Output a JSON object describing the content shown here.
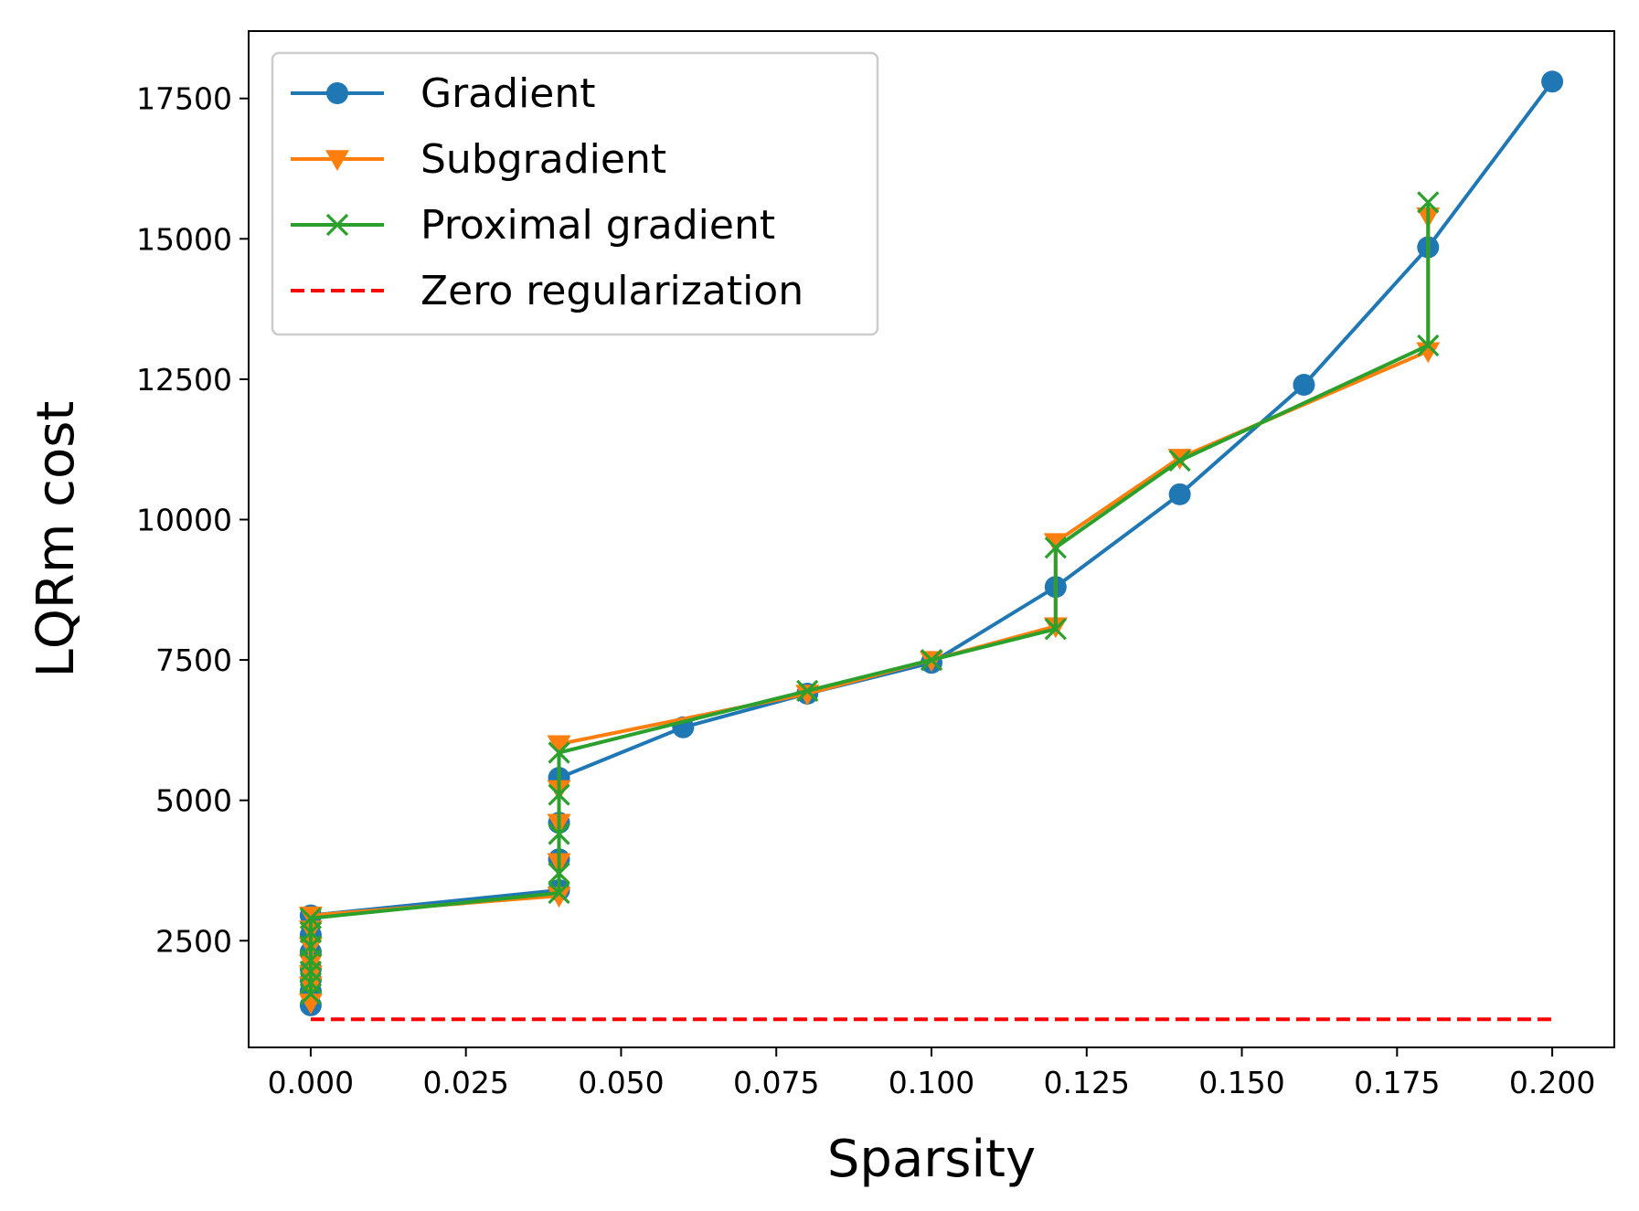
{
  "chart_data": {
    "type": "line",
    "title": "",
    "xlabel": "Sparsity",
    "ylabel": "LQRm cost",
    "xlim": [
      -0.01,
      0.21
    ],
    "ylim": [
      600,
      18700
    ],
    "xticks": [
      0.0,
      0.025,
      0.05,
      0.075,
      0.1,
      0.125,
      0.15,
      0.175,
      0.2
    ],
    "xtick_labels": [
      "0.000",
      "0.025",
      "0.050",
      "0.075",
      "0.100",
      "0.125",
      "0.150",
      "0.175",
      "0.200"
    ],
    "yticks": [
      2500,
      5000,
      7500,
      10000,
      12500,
      15000,
      17500
    ],
    "ytick_labels": [
      "2500",
      "5000",
      "7500",
      "10000",
      "12500",
      "15000",
      "17500"
    ],
    "grid": false,
    "legend_position": "top-left",
    "series": [
      {
        "name": "Gradient",
        "color": "#1f77b4",
        "marker": "circle",
        "line_style": "solid",
        "x": [
          0.0,
          0.0,
          0.0,
          0.0,
          0.0,
          0.0,
          0.0,
          0.04,
          0.04,
          0.04,
          0.04,
          0.06,
          0.08,
          0.1,
          0.12,
          0.14,
          0.16,
          0.18,
          0.2
        ],
        "y": [
          1350,
          1600,
          1800,
          2000,
          2300,
          2600,
          2950,
          3400,
          3950,
          4600,
          5400,
          6300,
          6900,
          7450,
          8800,
          10450,
          12400,
          14850,
          17800
        ]
      },
      {
        "name": "Subgradient",
        "color": "#ff7f0e",
        "marker": "triangle-down",
        "line_style": "solid",
        "x": [
          0.0,
          0.0,
          0.0,
          0.0,
          0.0,
          0.0,
          0.0,
          0.04,
          0.04,
          0.04,
          0.04,
          0.04,
          0.08,
          0.1,
          0.12,
          0.12,
          0.14,
          0.18,
          0.18
        ],
        "y": [
          1400,
          1700,
          1900,
          2100,
          2400,
          2700,
          2950,
          3300,
          3900,
          4600,
          5200,
          6000,
          6900,
          7500,
          8100,
          9600,
          11100,
          13000,
          15400
        ]
      },
      {
        "name": "Proximal gradient",
        "color": "#2ca02c",
        "marker": "x",
        "line_style": "solid",
        "x": [
          0.0,
          0.0,
          0.0,
          0.0,
          0.0,
          0.0,
          0.0,
          0.04,
          0.04,
          0.04,
          0.04,
          0.04,
          0.08,
          0.1,
          0.12,
          0.12,
          0.14,
          0.18,
          0.18
        ],
        "y": [
          1550,
          1750,
          1950,
          2150,
          2400,
          2650,
          2900,
          3350,
          3700,
          4400,
          5100,
          5850,
          6950,
          7500,
          8050,
          9500,
          11050,
          13100,
          15650
        ]
      },
      {
        "name": "Zero regularization",
        "color": "#ff0000",
        "marker": "none",
        "line_style": "dashed",
        "x": [
          0.0,
          0.2
        ],
        "y": [
          1100,
          1100
        ]
      }
    ]
  }
}
